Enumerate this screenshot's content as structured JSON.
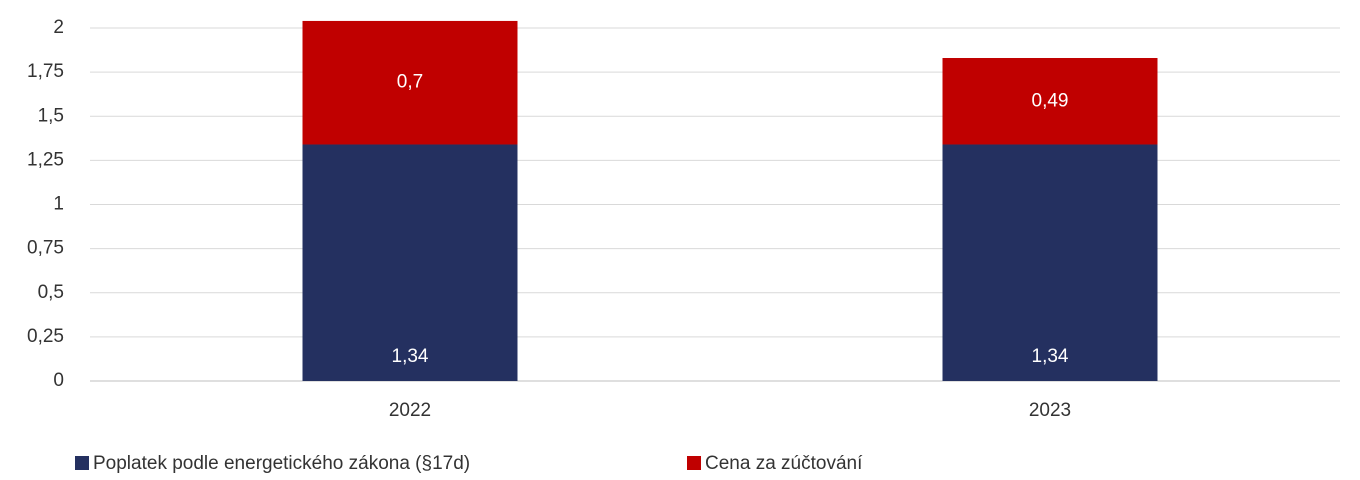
{
  "chart_data": {
    "type": "stacked-bar",
    "categories": [
      "2022",
      "2023"
    ],
    "series": [
      {
        "name": "Poplatek podle energetického zákona (§17d)",
        "color": "#243060",
        "values": [
          1.34,
          1.34
        ],
        "value_labels": [
          "1,34",
          "1,34"
        ]
      },
      {
        "name": "Cena za zúčtování",
        "color": "#c00000",
        "values": [
          0.7,
          0.49
        ],
        "value_labels": [
          "0,7",
          "0,49"
        ]
      }
    ],
    "ylim": [
      0,
      2
    ],
    "yticks": [
      0,
      {
        "value": 0.25,
        "label": "0,25"
      },
      {
        "value": 0.5,
        "label": "0,5"
      },
      {
        "value": 0.75,
        "label": "0,75"
      },
      1,
      {
        "value": 1.25,
        "label": "1,25"
      },
      {
        "value": 1.5,
        "label": "1,5"
      },
      {
        "value": 1.75,
        "label": "1,75"
      },
      2
    ],
    "grid": true,
    "legend": "bottom-left"
  }
}
